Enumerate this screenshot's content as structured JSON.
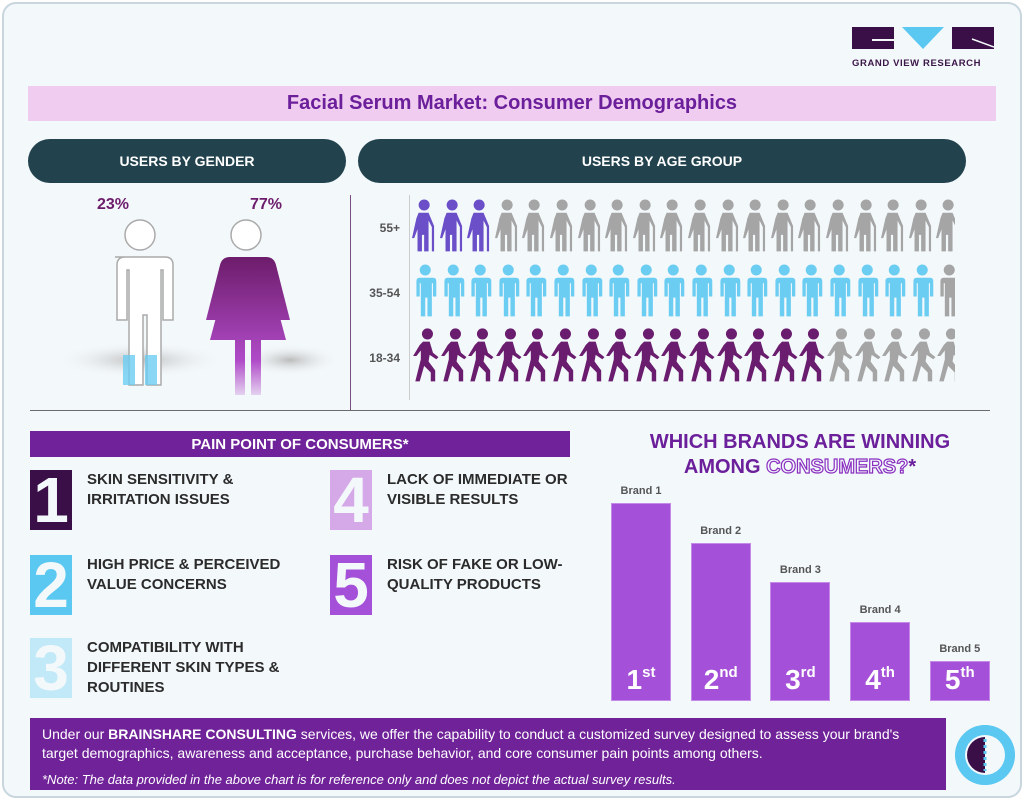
{
  "brand": {
    "name": "GRAND VIEW RESEARCH"
  },
  "title": "Facial Serum Market: Consumer Demographics",
  "gender": {
    "header": "USERS BY GENDER",
    "male_pct": "23%",
    "female_pct": "77%"
  },
  "age": {
    "header": "USERS BY AGE GROUP"
  },
  "pain": {
    "header": "PAIN POINT OF CONSUMERS*",
    "items": [
      {
        "num": "1",
        "text": "SKIN SENSITIVITY & IRRITATION ISSUES",
        "color": "#3a0f48"
      },
      {
        "num": "2",
        "text": "HIGH PRICE & PERCEIVED VALUE CONCERNS",
        "color": "#5bc8f2"
      },
      {
        "num": "3",
        "text": "COMPATIBILITY WITH DIFFERENT SKIN TYPES & ROUTINES",
        "color": "#c2e9f8"
      },
      {
        "num": "4",
        "text": "LACK OF IMMEDIATE OR VISIBLE RESULTS",
        "color": "#d5a9e8"
      },
      {
        "num": "5",
        "text": "RISK OF FAKE OR LOW-QUALITY PRODUCTS",
        "color": "#a550d8"
      }
    ]
  },
  "brands": {
    "title_line1": "WHICH BRANDS ARE WINNING",
    "title_line2a": "AMONG ",
    "title_line2b": "CONSUMERS?",
    "title_line2c": "*"
  },
  "chart_data": [
    {
      "type": "pie",
      "title": "USERS BY GENDER",
      "categories": [
        "Male",
        "Female"
      ],
      "values": [
        23,
        77
      ],
      "unit": "%"
    },
    {
      "type": "bar",
      "title": "USERS BY AGE GROUP",
      "categories": [
        "55+",
        "35-54",
        "18-34"
      ],
      "series": [
        {
          "name": "highlighted icons",
          "values": [
            3,
            19,
            15
          ]
        }
      ],
      "icons_per_row": 20,
      "colors": [
        "#6a4fc8",
        "#6ccdf2",
        "#6a1d6e"
      ],
      "inactive_color": "#a5a5a5"
    },
    {
      "type": "bar",
      "title": "WHICH BRANDS ARE WINNING AMONG CONSUMERS?*",
      "categories": [
        "Brand 1",
        "Brand 2",
        "Brand 3",
        "Brand 4",
        "Brand 5"
      ],
      "rank_labels": [
        [
          "1",
          "st"
        ],
        [
          "2",
          "nd"
        ],
        [
          "3",
          "rd"
        ],
        [
          "4",
          "th"
        ],
        [
          "5",
          "th"
        ]
      ],
      "values": [
        5,
        4,
        3,
        2,
        1
      ],
      "xlabel": "",
      "ylabel": "",
      "ylim": [
        0,
        5
      ]
    }
  ],
  "footer": {
    "pre": "Under our ",
    "bold": "BRAINSHARE CONSULTING",
    "post": " services, we offer the capability to conduct a customized survey designed to assess your brand's target demographics, awareness and acceptance, purchase behavior, and core consumer pain points among others.",
    "note": "*Note: The data provided in the above chart is for reference only and does not depict the actual survey results."
  }
}
